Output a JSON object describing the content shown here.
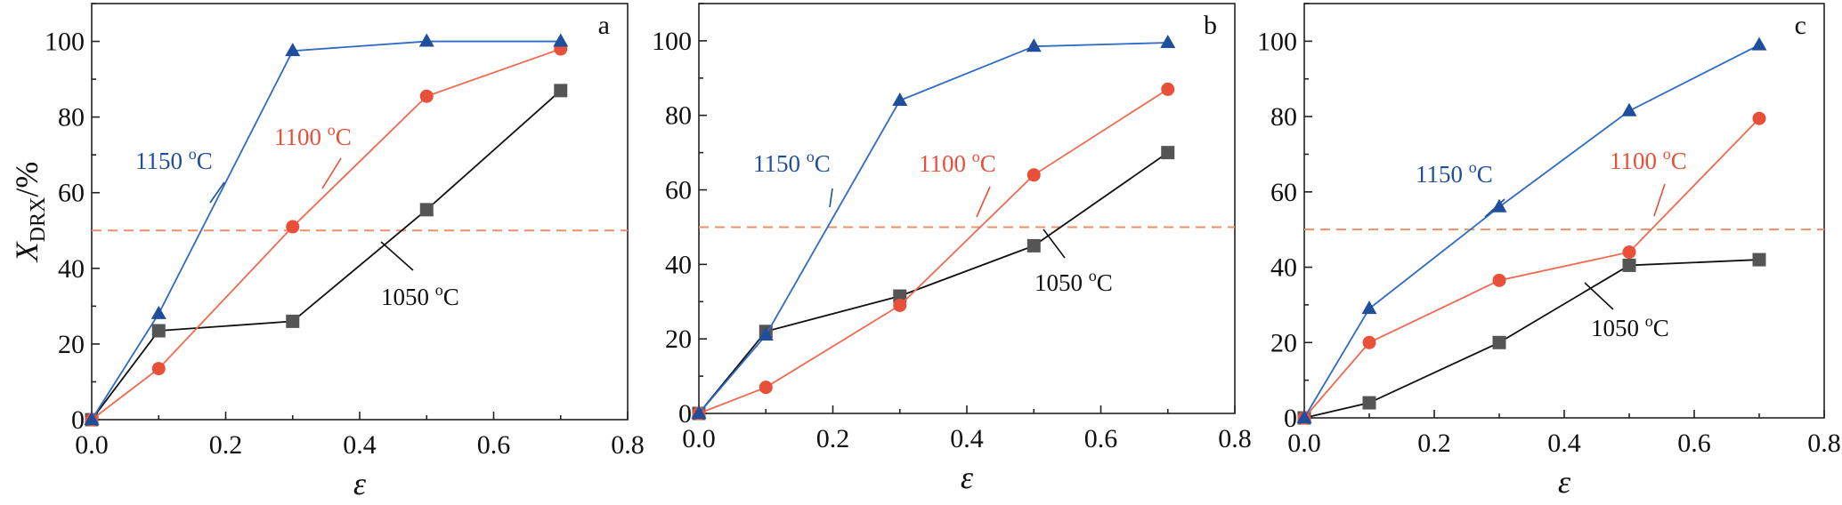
{
  "figure": {
    "ylabel_main": "X",
    "ylabel_sub": "DRX",
    "ylabel_unit": "/%",
    "xlabel": "ε"
  },
  "colors": {
    "1050": "#555555",
    "1100": "#e8503a",
    "1150": "#1f4e9c",
    "reference": "#e8906a",
    "line_1050": "#111111",
    "line_1100": "#ee6a50",
    "line_1150": "#2f6ac4"
  },
  "chart_data": [
    {
      "type": "line",
      "panel": "a",
      "xlabel": "ε",
      "ylabel": "X_DRX/%",
      "xlim": [
        0.0,
        0.8
      ],
      "ylim": [
        0,
        110
      ],
      "x_ticks": [
        "0.0",
        "0.2",
        "0.4",
        "0.6",
        "0.8"
      ],
      "y_ticks": [
        "0",
        "20",
        "40",
        "60",
        "80",
        "100"
      ],
      "reference_line_y": 50,
      "series": [
        {
          "name": "1150 oC",
          "label_main": "1150 ",
          "label_sup": "o",
          "label_end": "C",
          "color": "1150",
          "marker": "triangle",
          "x": [
            0.0,
            0.1,
            0.3,
            0.5,
            0.7
          ],
          "y": [
            0,
            28,
            97.5,
            100,
            100
          ]
        },
        {
          "name": "1100 oC",
          "label_main": "1100 ",
          "label_sup": "o",
          "label_end": "C",
          "color": "1100",
          "marker": "circle",
          "x": [
            0.0,
            0.1,
            0.3,
            0.5,
            0.7
          ],
          "y": [
            0,
            13.5,
            51,
            85.5,
            98
          ]
        },
        {
          "name": "1050 oC",
          "label_main": "1050 ",
          "label_sup": "o",
          "label_end": "C",
          "color": "1050",
          "marker": "square",
          "x": [
            0.0,
            0.1,
            0.3,
            0.5,
            0.7
          ],
          "y": [
            0,
            23.5,
            26,
            55.5,
            87
          ]
        }
      ]
    },
    {
      "type": "line",
      "panel": "b",
      "xlabel": "ε",
      "ylabel": "",
      "xlim": [
        0.0,
        0.8
      ],
      "ylim": [
        0,
        110
      ],
      "x_ticks": [
        "0.0",
        "0.2",
        "0.4",
        "0.6",
        "0.8"
      ],
      "y_ticks": [
        "0",
        "20",
        "40",
        "60",
        "80",
        "100"
      ],
      "reference_line_y": 50,
      "series": [
        {
          "name": "1150 oC",
          "label_main": "1150 ",
          "label_sup": "o",
          "label_end": "C",
          "color": "1150",
          "marker": "triangle",
          "x": [
            0.0,
            0.1,
            0.3,
            0.5,
            0.7
          ],
          "y": [
            0,
            21,
            84,
            98.5,
            99.5
          ]
        },
        {
          "name": "1100 oC",
          "label_main": "1100 ",
          "label_sup": "o",
          "label_end": "C",
          "color": "1100",
          "marker": "circle",
          "x": [
            0.0,
            0.1,
            0.3,
            0.5,
            0.7
          ],
          "y": [
            0,
            7,
            29,
            64,
            87
          ]
        },
        {
          "name": "1050 oC",
          "label_main": "1050 ",
          "label_sup": "o",
          "label_end": "C",
          "color": "1050",
          "marker": "square",
          "x": [
            0.0,
            0.1,
            0.3,
            0.5,
            0.7
          ],
          "y": [
            0,
            22,
            31.5,
            45,
            70
          ]
        }
      ]
    },
    {
      "type": "line",
      "panel": "c",
      "xlabel": "ε",
      "ylabel": "",
      "xlim": [
        0.0,
        0.8
      ],
      "ylim": [
        0,
        110
      ],
      "x_ticks": [
        "0.0",
        "0.2",
        "0.4",
        "0.6",
        "0.8"
      ],
      "y_ticks": [
        "0",
        "20",
        "40",
        "60",
        "80",
        "100"
      ],
      "reference_line_y": 50,
      "series": [
        {
          "name": "1150 oC",
          "label_main": "1150 ",
          "label_sup": "o",
          "label_end": "C",
          "color": "1150",
          "marker": "triangle",
          "x": [
            0.0,
            0.1,
            0.3,
            0.5,
            0.7
          ],
          "y": [
            0,
            29,
            56,
            81.5,
            99
          ]
        },
        {
          "name": "1100 oC",
          "label_main": "1100 ",
          "label_sup": "o",
          "label_end": "C",
          "color": "1100",
          "marker": "circle",
          "x": [
            0.0,
            0.1,
            0.3,
            0.5,
            0.7
          ],
          "y": [
            0,
            20,
            36.5,
            44,
            79.5
          ]
        },
        {
          "name": "1050 oC",
          "label_main": "1050 ",
          "label_sup": "o",
          "label_end": "C",
          "color": "1050",
          "marker": "square",
          "x": [
            0.0,
            0.1,
            0.3,
            0.5,
            0.7
          ],
          "y": [
            0,
            4,
            20,
            40.5,
            42
          ]
        }
      ]
    }
  ]
}
